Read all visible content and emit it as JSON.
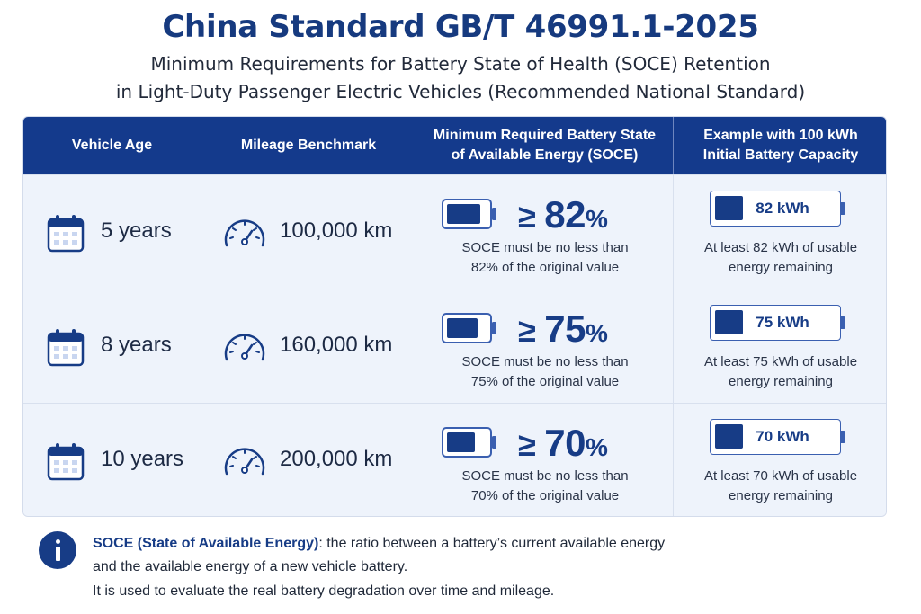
{
  "title": "China Standard GB/T 46991.1-2025",
  "subtitle_line1": "Minimum Requirements for Battery State of Health (SOCE) Retention",
  "subtitle_line2": "in Light-Duty Passenger Electric Vehicles (Recommended National Standard)",
  "headers": {
    "age": "Vehicle Age",
    "mileage": "Mileage Benchmark",
    "soce_line1": "Minimum Required Battery State",
    "soce_line2": "of Available Energy (SOCE)",
    "example_line1": "Example with 100 kWh",
    "example_line2": "Initial Battery Capacity"
  },
  "rows": [
    {
      "age": "5 years",
      "mileage": "100,000 km",
      "sign": "≥",
      "percent": "82",
      "percent_unit": "%",
      "note_line1": "SOCE must be no less than",
      "note_line2": "82% of the original value",
      "kwh": "82 kWh",
      "example_line1": "At least 82 kWh of usable",
      "example_line2": "energy remaining"
    },
    {
      "age": "8 years",
      "mileage": "160,000 km",
      "sign": "≥",
      "percent": "75",
      "percent_unit": "%",
      "note_line1": "SOCE must be no less than",
      "note_line2": "75% of the original value",
      "kwh": "75 kWh",
      "example_line1": "At least 75 kWh of usable",
      "example_line2": "energy remaining"
    },
    {
      "age": "10 years",
      "mileage": "200,000 km",
      "sign": "≥",
      "percent": "70",
      "percent_unit": "%",
      "note_line1": "SOCE must be no less than",
      "note_line2": "70% of the original value",
      "kwh": "70 kWh",
      "example_line1": "At least 70 kWh of usable",
      "example_line2": "energy remaining"
    }
  ],
  "info": {
    "term": "SOCE (State of Available Energy)",
    "line1_rest": ": the ratio between a battery’s current available energy",
    "line2": "and the available energy of a new vehicle battery.",
    "line3": "It is used to evaluate the real battery degradation over time and mileage."
  },
  "colors": {
    "primary": "#143a8c",
    "accent": "#173c86",
    "row_bg": "#eef3fb",
    "header_text": "#ffffff"
  },
  "icons": [
    "calendar-icon",
    "speedometer-icon",
    "battery-icon",
    "info-icon"
  ]
}
